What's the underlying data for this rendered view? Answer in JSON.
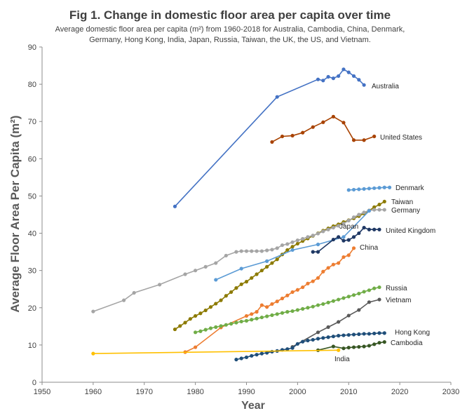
{
  "chart_data": {
    "type": "line",
    "title": "Fig 1. Change in domestic floor area per capita over time",
    "subtitle": "Average domestic floor area per capita (m²) from 1960-2018 for Australia, Cambodia, China, Denmark, Germany, Hong Kong, India, Japan, Russia, Taiwan, the UK, the US, and Vietnam.",
    "xlabel": "Year",
    "ylabel": "Average Floor Area Per Capita (m²)",
    "xlim": [
      1950,
      2030
    ],
    "ylim": [
      0,
      90
    ],
    "xticks": [
      "1950",
      "1960",
      "1970",
      "1980",
      "1990",
      "2000",
      "2010",
      "2020",
      "2030"
    ],
    "yticks": [
      "0",
      "10",
      "20",
      "30",
      "40",
      "50",
      "60",
      "70",
      "80",
      "90"
    ],
    "grid": false,
    "legend": "none (direct labels)",
    "series": [
      {
        "name": "Australia",
        "color": "#4472c4",
        "x": [
          1976,
          1996,
          2004,
          2005,
          2006,
          2007,
          2008,
          2009,
          2010,
          2011,
          2012,
          2013
        ],
        "y": [
          47.2,
          76.6,
          81.3,
          81.0,
          82.0,
          81.6,
          82.2,
          84.0,
          83.2,
          82.2,
          81.2,
          79.8
        ]
      },
      {
        "name": "United States",
        "color": "#a84200",
        "x": [
          1995,
          1997,
          1999,
          2001,
          2003,
          2005,
          2007,
          2009,
          2011,
          2013,
          2015
        ],
        "y": [
          64.5,
          66.0,
          66.2,
          67.0,
          68.5,
          69.8,
          71.3,
          69.7,
          65.0,
          65.0,
          66.0
        ]
      },
      {
        "name": "Denmark",
        "color": "#5b9bd5",
        "x": [
          2010,
          2011,
          2012,
          2013,
          2014,
          2015,
          2016,
          2017,
          2018
        ],
        "y": [
          51.6,
          51.7,
          51.8,
          51.9,
          52.0,
          52.1,
          52.2,
          52.3,
          52.3
        ]
      },
      {
        "name": "Taiwan",
        "color": "#8c7a00",
        "x": [
          1976,
          1977,
          1978,
          1979,
          1980,
          1981,
          1982,
          1983,
          1984,
          1985,
          1986,
          1987,
          1988,
          1989,
          1990,
          1991,
          1992,
          1993,
          1994,
          1995,
          1996,
          1997,
          1998,
          1999,
          2000,
          2001,
          2002,
          2003,
          2004,
          2005,
          2006,
          2007,
          2008,
          2009,
          2010,
          2011,
          2012,
          2013,
          2014,
          2015,
          2016,
          2017
        ],
        "y": [
          14.2,
          15.1,
          16.0,
          17.0,
          17.8,
          18.5,
          19.3,
          20.2,
          21.1,
          22.0,
          23.2,
          24.2,
          25.3,
          26.3,
          27.0,
          28.0,
          29.0,
          30.0,
          31.0,
          32.0,
          33.0,
          34.3,
          35.5,
          36.4,
          37.2,
          37.9,
          38.6,
          39.3,
          40.0,
          40.7,
          41.3,
          41.9,
          42.4,
          43.0,
          43.5,
          44.0,
          44.6,
          45.3,
          46.1,
          47.0,
          47.7,
          48.5
        ]
      },
      {
        "name": "Germany",
        "color": "#a5a5a5",
        "x": [
          1960,
          1966,
          1968,
          1973,
          1978,
          1980,
          1982,
          1984,
          1986,
          1988,
          1989,
          1990,
          1991,
          1992,
          1993,
          1994,
          1995,
          1996,
          1997,
          1998,
          1999,
          2000,
          2001,
          2002,
          2003,
          2004,
          2005,
          2006,
          2007,
          2008,
          2009,
          2010,
          2011,
          2012,
          2013,
          2014,
          2015,
          2016,
          2017
        ],
        "y": [
          19.0,
          22.0,
          24.0,
          26.2,
          29.0,
          30.0,
          31.0,
          32.0,
          34.0,
          35.0,
          35.2,
          35.2,
          35.2,
          35.2,
          35.2,
          35.4,
          35.6,
          36.0,
          36.8,
          37.1,
          37.6,
          38.1,
          38.5,
          39.0,
          39.4,
          39.9,
          40.5,
          41.0,
          41.5,
          42.0,
          42.6,
          43.4,
          44.3,
          45.0,
          45.6,
          46.1,
          46.3,
          46.3,
          46.3
        ]
      },
      {
        "name": "Japan",
        "color": "#5b9bd5",
        "x": [
          1984,
          1989,
          1994,
          1999,
          2004,
          2009,
          2014
        ],
        "y": [
          27.5,
          30.5,
          32.5,
          35.5,
          37.0,
          39.0,
          46.0
        ]
      },
      {
        "name": "United Kingdom",
        "color": "#1f3864",
        "x": [
          2003,
          2004,
          2007,
          2008,
          2009,
          2010,
          2011,
          2012,
          2013,
          2014,
          2015,
          2016
        ],
        "y": [
          35.0,
          35.0,
          38.3,
          39.0,
          38.0,
          38.2,
          39.0,
          40.0,
          41.5,
          41.0,
          41.0,
          41.0
        ]
      },
      {
        "name": "China",
        "color": "#ed7d31",
        "x": [
          1978,
          1980,
          1985,
          1990,
          1991,
          1992,
          1993,
          1994,
          1995,
          1996,
          1997,
          1998,
          1999,
          2000,
          2001,
          2002,
          2003,
          2004,
          2005,
          2006,
          2007,
          2008,
          2009,
          2010,
          2011
        ],
        "y": [
          8.1,
          9.4,
          14.7,
          17.8,
          18.3,
          18.9,
          20.7,
          20.2,
          21.0,
          21.7,
          22.5,
          23.3,
          24.2,
          24.8,
          25.5,
          26.5,
          27.1,
          28.0,
          29.7,
          30.7,
          31.6,
          32.0,
          33.6,
          34.1,
          36.0
        ]
      },
      {
        "name": "Russia",
        "color": "#70ad47",
        "x": [
          1980,
          1981,
          1982,
          1983,
          1984,
          1985,
          1986,
          1987,
          1988,
          1989,
          1990,
          1991,
          1992,
          1993,
          1994,
          1995,
          1996,
          1997,
          1998,
          1999,
          2000,
          2001,
          2002,
          2003,
          2004,
          2005,
          2006,
          2007,
          2008,
          2009,
          2010,
          2011,
          2012,
          2013,
          2014,
          2015,
          2016
        ],
        "y": [
          13.4,
          13.7,
          14.1,
          14.5,
          14.8,
          15.1,
          15.4,
          15.7,
          16.0,
          16.3,
          16.5,
          16.8,
          17.1,
          17.4,
          17.7,
          18.0,
          18.3,
          18.6,
          18.9,
          19.1,
          19.4,
          19.7,
          20.0,
          20.3,
          20.7,
          21.0,
          21.4,
          21.8,
          22.2,
          22.6,
          23.0,
          23.4,
          23.8,
          24.3,
          24.7,
          25.2,
          25.5
        ]
      },
      {
        "name": "Vietnam",
        "color": "#595959",
        "x": [
          1999,
          2004,
          2006,
          2008,
          2010,
          2012,
          2014,
          2016
        ],
        "y": [
          9.5,
          13.4,
          14.8,
          16.2,
          17.9,
          19.4,
          21.5,
          22.2
        ]
      },
      {
        "name": "Hong Kong",
        "color": "#1f4e79",
        "x": [
          1988,
          1989,
          1990,
          1991,
          1992,
          1993,
          1994,
          1995,
          1996,
          1997,
          1998,
          1999,
          2000,
          2001,
          2002,
          2003,
          2004,
          2005,
          2006,
          2007,
          2008,
          2009,
          2010,
          2011,
          2012,
          2013,
          2014,
          2015,
          2016,
          2017
        ],
        "y": [
          6.1,
          6.4,
          6.7,
          7.1,
          7.4,
          7.7,
          7.9,
          8.2,
          8.4,
          8.7,
          8.9,
          9.2,
          10.3,
          10.9,
          11.2,
          11.4,
          11.7,
          11.9,
          12.1,
          12.3,
          12.5,
          12.6,
          12.7,
          12.8,
          12.9,
          13.0,
          13.0,
          13.1,
          13.2,
          13.2
        ]
      },
      {
        "name": "Cambodia",
        "color": "#375623",
        "x": [
          2004,
          2007,
          2009,
          2010,
          2011,
          2012,
          2013,
          2014,
          2015,
          2016,
          2017
        ],
        "y": [
          8.6,
          9.6,
          9.1,
          9.3,
          9.4,
          9.5,
          9.6,
          9.8,
          10.2,
          10.6,
          10.8
        ]
      },
      {
        "name": "India",
        "color": "#ffc000",
        "x": [
          1960,
          2008
        ],
        "y": [
          7.7,
          8.6
        ]
      }
    ]
  }
}
